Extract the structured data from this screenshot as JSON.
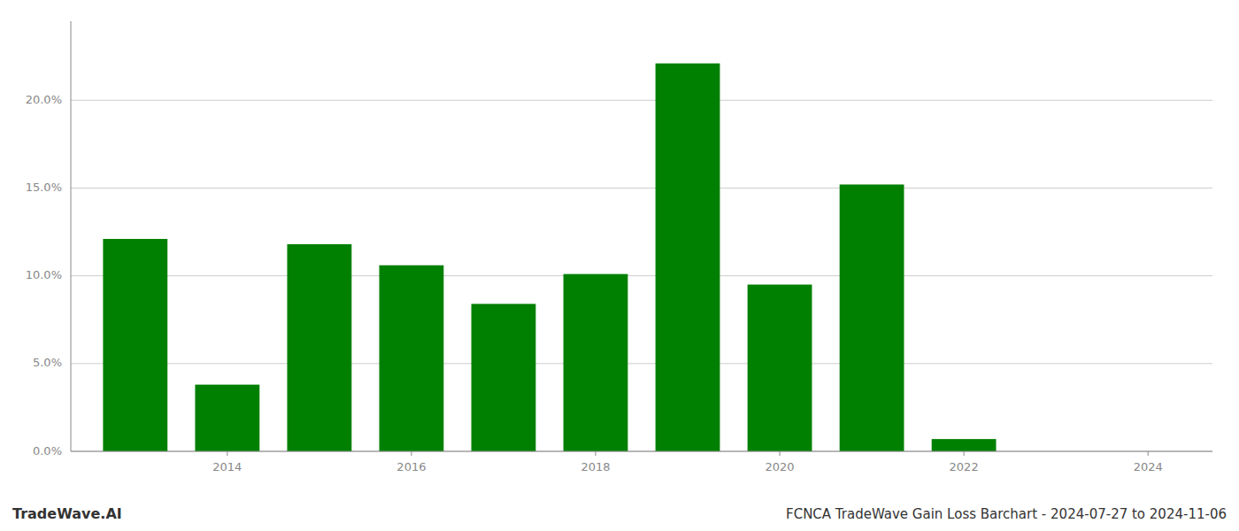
{
  "chart_data": {
    "type": "bar",
    "title": "FCNCA TradeWave Gain Loss Barchart - 2024-07-27 to 2024-11-06",
    "annotations": [
      "TradeWave.AI"
    ],
    "x": [
      2013,
      2014,
      2015,
      2016,
      2017,
      2018,
      2019,
      2020,
      2021,
      2022,
      2023
    ],
    "values": [
      0.121,
      0.038,
      0.118,
      0.106,
      0.084,
      0.101,
      0.221,
      0.095,
      0.152,
      0.007,
      0.0
    ],
    "color": "#008000",
    "xlim": [
      2012.3,
      2024.7
    ],
    "xticks": [
      2014,
      2016,
      2018,
      2020,
      2022,
      2024
    ],
    "ylim": [
      0,
      0.245
    ],
    "yticks": [
      {
        "value": 0.0,
        "label": "0.0%"
      },
      {
        "value": 0.05,
        "label": "5.0%"
      },
      {
        "value": 0.1,
        "label": "10.0%"
      },
      {
        "value": 0.15,
        "label": "15.0%"
      },
      {
        "value": 0.2,
        "label": "20.0%"
      }
    ],
    "grid": true
  }
}
